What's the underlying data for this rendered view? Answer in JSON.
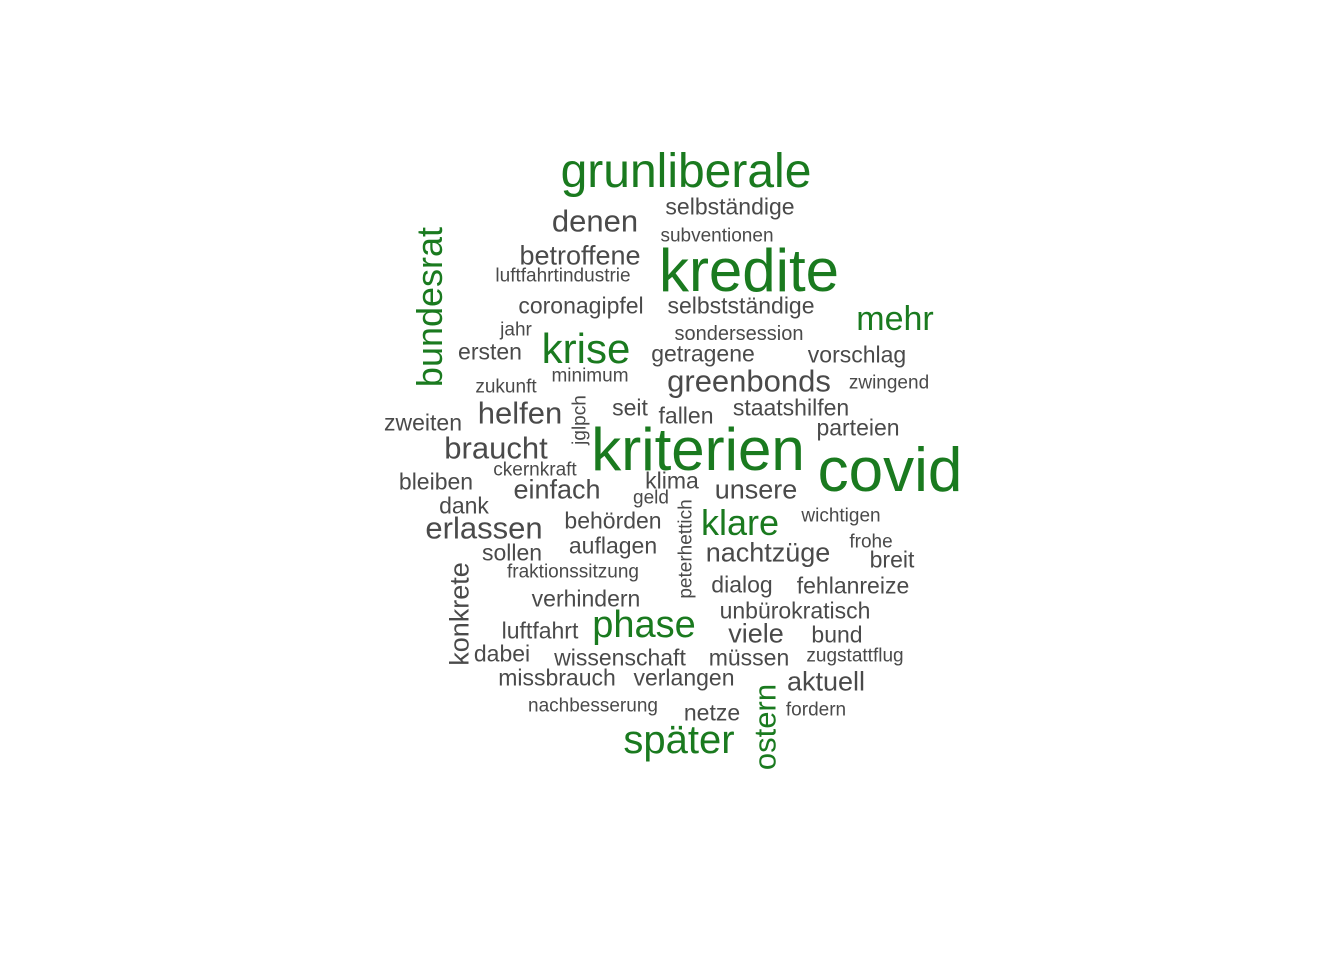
{
  "wordcloud": {
    "colors": {
      "primary": "#1a7a1f",
      "secondary": "#4a4a4a"
    },
    "words": [
      {
        "text": "grunliberale",
        "emphasis": "primary"
      },
      {
        "text": "selbständige",
        "emphasis": "secondary"
      },
      {
        "text": "denen",
        "emphasis": "secondary"
      },
      {
        "text": "subventionen",
        "emphasis": "secondary"
      },
      {
        "text": "betroffene",
        "emphasis": "secondary"
      },
      {
        "text": "kredite",
        "emphasis": "primary"
      },
      {
        "text": "luftfahrtindustrie",
        "emphasis": "secondary"
      },
      {
        "text": "bundesrat",
        "emphasis": "primary",
        "rotated": true
      },
      {
        "text": "coronagipfel",
        "emphasis": "secondary"
      },
      {
        "text": "selbstständige",
        "emphasis": "secondary"
      },
      {
        "text": "mehr",
        "emphasis": "primary"
      },
      {
        "text": "jahr",
        "emphasis": "secondary"
      },
      {
        "text": "sondersession",
        "emphasis": "secondary"
      },
      {
        "text": "ersten",
        "emphasis": "secondary"
      },
      {
        "text": "krise",
        "emphasis": "primary"
      },
      {
        "text": "getragene",
        "emphasis": "secondary"
      },
      {
        "text": "vorschlag",
        "emphasis": "secondary"
      },
      {
        "text": "minimum",
        "emphasis": "secondary"
      },
      {
        "text": "zukunft",
        "emphasis": "secondary"
      },
      {
        "text": "greenbonds",
        "emphasis": "secondary"
      },
      {
        "text": "zwingend",
        "emphasis": "secondary"
      },
      {
        "text": "jglpch",
        "emphasis": "secondary",
        "rotated": true
      },
      {
        "text": "seit",
        "emphasis": "secondary"
      },
      {
        "text": "staatshilfen",
        "emphasis": "secondary"
      },
      {
        "text": "helfen",
        "emphasis": "secondary"
      },
      {
        "text": "fallen",
        "emphasis": "secondary"
      },
      {
        "text": "zweiten",
        "emphasis": "secondary"
      },
      {
        "text": "parteien",
        "emphasis": "secondary"
      },
      {
        "text": "braucht",
        "emphasis": "secondary"
      },
      {
        "text": "kriterien",
        "emphasis": "primary"
      },
      {
        "text": "covid",
        "emphasis": "primary"
      },
      {
        "text": "ckernkraft",
        "emphasis": "secondary"
      },
      {
        "text": "bleiben",
        "emphasis": "secondary"
      },
      {
        "text": "klima",
        "emphasis": "secondary"
      },
      {
        "text": "einfach",
        "emphasis": "secondary"
      },
      {
        "text": "unsere",
        "emphasis": "secondary"
      },
      {
        "text": "geld",
        "emphasis": "secondary"
      },
      {
        "text": "dank",
        "emphasis": "secondary"
      },
      {
        "text": "peterhettich",
        "emphasis": "secondary",
        "rotated": true
      },
      {
        "text": "wichtigen",
        "emphasis": "secondary"
      },
      {
        "text": "erlassen",
        "emphasis": "secondary"
      },
      {
        "text": "behörden",
        "emphasis": "secondary"
      },
      {
        "text": "klare",
        "emphasis": "primary"
      },
      {
        "text": "frohe",
        "emphasis": "secondary"
      },
      {
        "text": "auflagen",
        "emphasis": "secondary"
      },
      {
        "text": "sollen",
        "emphasis": "secondary"
      },
      {
        "text": "nachtzüge",
        "emphasis": "secondary"
      },
      {
        "text": "breit",
        "emphasis": "secondary"
      },
      {
        "text": "fraktionssitzung",
        "emphasis": "secondary"
      },
      {
        "text": "konkrete",
        "emphasis": "secondary",
        "rotated": true
      },
      {
        "text": "dialog",
        "emphasis": "secondary"
      },
      {
        "text": "fehlanreize",
        "emphasis": "secondary"
      },
      {
        "text": "verhindern",
        "emphasis": "secondary"
      },
      {
        "text": "unbürokratisch",
        "emphasis": "secondary"
      },
      {
        "text": "luftfahrt",
        "emphasis": "secondary"
      },
      {
        "text": "phase",
        "emphasis": "primary"
      },
      {
        "text": "viele",
        "emphasis": "secondary"
      },
      {
        "text": "bund",
        "emphasis": "secondary"
      },
      {
        "text": "dabei",
        "emphasis": "secondary"
      },
      {
        "text": "wissenschaft",
        "emphasis": "secondary"
      },
      {
        "text": "müssen",
        "emphasis": "secondary"
      },
      {
        "text": "zugstattflug",
        "emphasis": "secondary"
      },
      {
        "text": "missbrauch",
        "emphasis": "secondary"
      },
      {
        "text": "verlangen",
        "emphasis": "secondary"
      },
      {
        "text": "aktuell",
        "emphasis": "secondary"
      },
      {
        "text": "ostern",
        "emphasis": "primary",
        "rotated": true
      },
      {
        "text": "nachbesserung",
        "emphasis": "secondary"
      },
      {
        "text": "netze",
        "emphasis": "secondary"
      },
      {
        "text": "fordern",
        "emphasis": "secondary"
      },
      {
        "text": "später",
        "emphasis": "primary"
      }
    ]
  }
}
